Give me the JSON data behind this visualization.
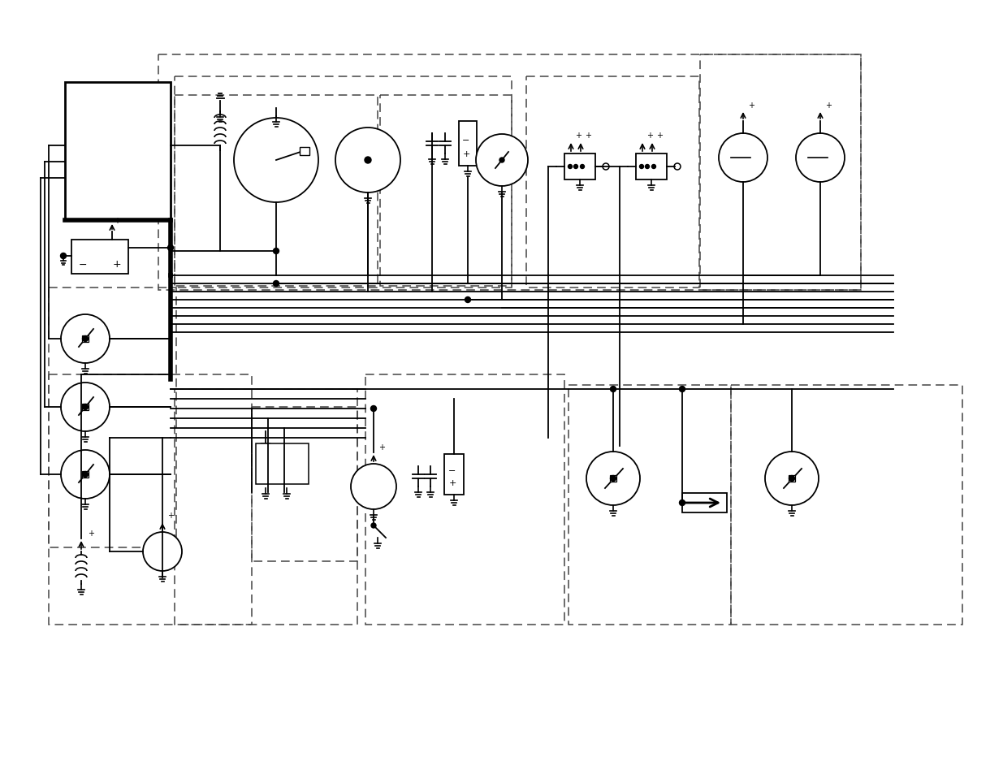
{
  "bg_color": "#ffffff",
  "lc": "#000000",
  "fig_w": 12.35,
  "fig_h": 9.54,
  "dpi": 100
}
